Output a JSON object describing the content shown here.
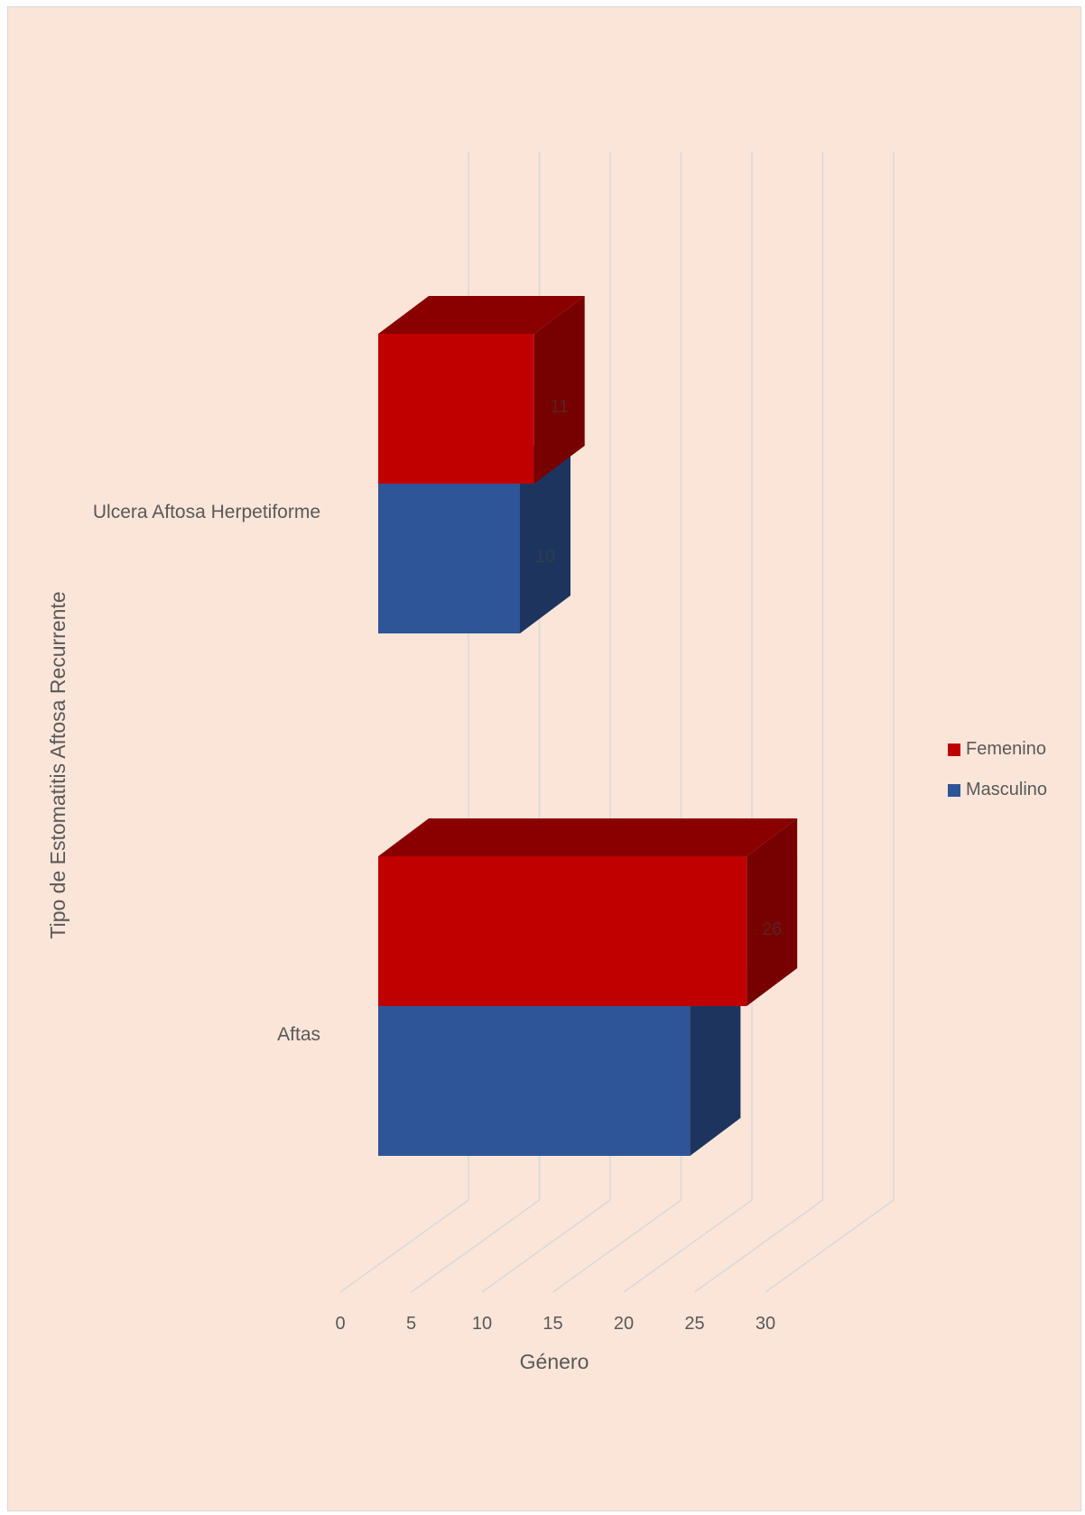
{
  "chart_data": {
    "type": "bar",
    "orientation": "horizontal",
    "three_d": true,
    "categories": [
      "Ulcera Aftosa Herpetiforme",
      "Aftas"
    ],
    "series": [
      {
        "name": "Femenino",
        "values": [
          11,
          26
        ],
        "color": "#c00000"
      },
      {
        "name": "Masculino",
        "values": [
          10,
          22
        ],
        "color": "#2e5597"
      }
    ],
    "data_labels": [
      {
        "series": "Femenino",
        "category": "Ulcera Aftosa Herpetiforme",
        "text": "11"
      },
      {
        "series": "Masculino",
        "category": "Ulcera Aftosa Herpetiforme",
        "text": "10"
      },
      {
        "series": "Femenino",
        "category": "Aftas",
        "text": "26"
      }
    ],
    "xlabel": "Género",
    "ylabel": "Tipo de Estomatitis Aftosa Recurrente",
    "x_ticks": [
      "0",
      "5",
      "10",
      "15",
      "20",
      "25",
      "30"
    ],
    "xlim": [
      0,
      30
    ],
    "grid": true,
    "legend_position": "right"
  }
}
